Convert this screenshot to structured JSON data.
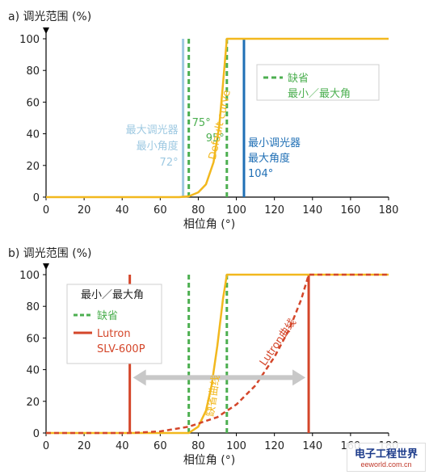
{
  "colors": {
    "axis": "#000000",
    "grid": "#e6e6e6",
    "default_curve": "#f2b81e",
    "default_dashed": "#4caf50",
    "max_dimmer": "#9ec9e2",
    "min_dimmer": "#1f6fb5",
    "lutron": "#d4462a",
    "arrow": "#c8c8c8"
  },
  "chart_data": [
    {
      "type": "line",
      "panel_label": "a) 调光范围 (%)",
      "xlabel": "相位角 (°)",
      "xlim": [
        0,
        180
      ],
      "ylim": [
        0,
        100
      ],
      "xticks": [
        0,
        20,
        40,
        60,
        80,
        100,
        120,
        140,
        160,
        180
      ],
      "yticks": [
        0,
        20,
        40,
        60,
        80,
        100
      ],
      "grid": false,
      "series": [
        {
          "name": "Default curve",
          "style": "solid-yellow",
          "x": [
            0,
            70,
            75,
            80,
            84,
            88,
            91,
            93,
            95,
            180
          ],
          "y": [
            0,
            0,
            0.5,
            3,
            8,
            22,
            45,
            72,
            100,
            100
          ]
        }
      ],
      "vlines": [
        {
          "x": 72,
          "style": "solid-lightblue",
          "label_lines": [
            "最大调光器",
            "最小角度",
            "72°"
          ]
        },
        {
          "x": 75,
          "style": "dashed-green",
          "label": "75°"
        },
        {
          "x": 95,
          "style": "dashed-green",
          "label": "95°"
        },
        {
          "x": 104,
          "style": "solid-blue",
          "label_lines": [
            "最小调光器",
            "最大角度",
            "104°"
          ]
        }
      ],
      "legend": {
        "placement": "top-right",
        "entries": [
          {
            "style": "dashed-green",
            "lines": [
              "缺省",
              "最小／最大角"
            ]
          }
        ]
      },
      "curve_label": "Default curve"
    },
    {
      "type": "line",
      "panel_label": "b) 调光范围 (%)",
      "xlabel": "相位角 (°)",
      "xlim": [
        0,
        180
      ],
      "ylim": [
        0,
        100
      ],
      "xticks": [
        0,
        20,
        40,
        60,
        80,
        100,
        120,
        140,
        160,
        180
      ],
      "yticks": [
        0,
        20,
        40,
        60,
        80,
        100
      ],
      "grid": false,
      "series": [
        {
          "name": "缺省曲线",
          "style": "solid-yellow",
          "x": [
            0,
            75,
            80,
            84,
            87,
            90,
            93,
            95,
            180
          ],
          "y": [
            0,
            0,
            4,
            14,
            30,
            55,
            85,
            100,
            100
          ]
        },
        {
          "name": "Lutron曲线",
          "style": "dashed-red",
          "x": [
            0,
            44,
            60,
            75,
            90,
            100,
            110,
            120,
            128,
            134,
            138,
            180
          ],
          "y": [
            0,
            0,
            1,
            4,
            10,
            18,
            30,
            48,
            66,
            84,
            100,
            100
          ]
        }
      ],
      "vlines": [
        {
          "x": 44,
          "style": "solid-red"
        },
        {
          "x": 75,
          "style": "dashed-green"
        },
        {
          "x": 95,
          "style": "dashed-green"
        },
        {
          "x": 138,
          "style": "solid-red"
        }
      ],
      "arrow": {
        "x_from": 44,
        "x_to": 138,
        "y": 35
      },
      "legend": {
        "placement": "top-left",
        "title": "最小／最大角",
        "entries": [
          {
            "style": "dashed-green",
            "lines": [
              "缺省"
            ]
          },
          {
            "style": "solid-red",
            "lines": [
              "Lutron",
              "SLV-600P"
            ]
          }
        ]
      },
      "curve_labels": [
        "缺省曲线",
        "Lutron曲线"
      ]
    }
  ],
  "watermark": {
    "line1": "电子工程世界",
    "line2": "eeworld.com.cn"
  }
}
